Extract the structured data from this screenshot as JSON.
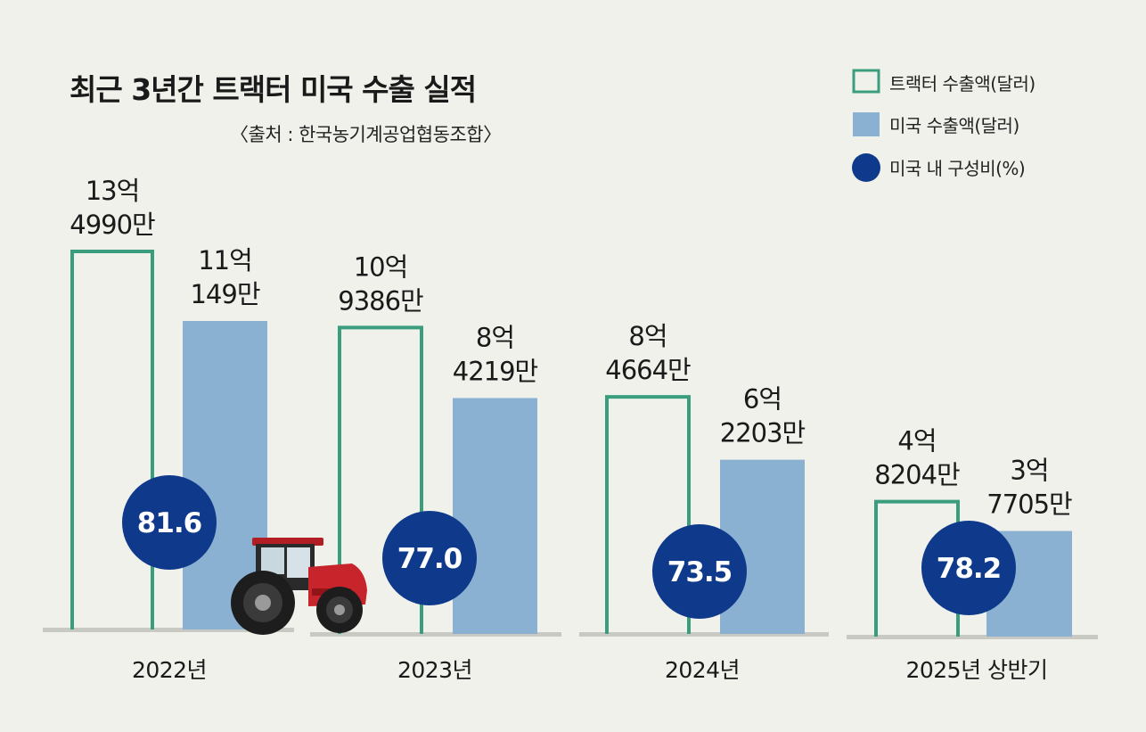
{
  "title": "최근 3년간 트랙터 미국 수출 실적",
  "source": "〈출처 : 한국농기계공업협동조합〉",
  "legend": [
    {
      "label": "트랙터 수출액(달러)",
      "type": "outline",
      "color": "#3a9e7e"
    },
    {
      "label": "미국 수출액(달러)",
      "type": "fill",
      "color": "#8ab1d1"
    },
    {
      "label": "미국 내 구성비(%)",
      "type": "circle",
      "color": "#0f3a8c"
    }
  ],
  "colors": {
    "background": "#f1f1ec",
    "total_outline": "#3a9e7e",
    "us_fill": "#8ab1d1",
    "share_circle": "#0f3a8c",
    "baseline": "#c9c9c4"
  },
  "chart_data": {
    "type": "bar",
    "title": "최근 3년간 트랙터 미국 수출 실적",
    "categories": [
      "2022년",
      "2023년",
      "2024년",
      "2025년 상반기"
    ],
    "series": [
      {
        "name": "트랙터 수출액(달러)",
        "values": [
          1349900000,
          1093860000,
          846640000,
          482040000
        ],
        "labels": [
          [
            "13억",
            "4990만"
          ],
          [
            "10억",
            "9386만"
          ],
          [
            "8억",
            "4664만"
          ],
          [
            "4억",
            "8204만"
          ]
        ]
      },
      {
        "name": "미국 수출액(달러)",
        "values": [
          1101490000,
          842190000,
          622030000,
          377050000
        ],
        "labels": [
          [
            "11억",
            "149만"
          ],
          [
            "8억",
            "4219만"
          ],
          [
            "6억",
            "2203만"
          ],
          [
            "3억",
            "7705만"
          ]
        ]
      },
      {
        "name": "미국 내 구성비(%)",
        "values": [
          81.6,
          77.0,
          73.5,
          78.2
        ],
        "labels": [
          "81.6",
          "77.0",
          "73.5",
          "78.2"
        ]
      }
    ]
  }
}
